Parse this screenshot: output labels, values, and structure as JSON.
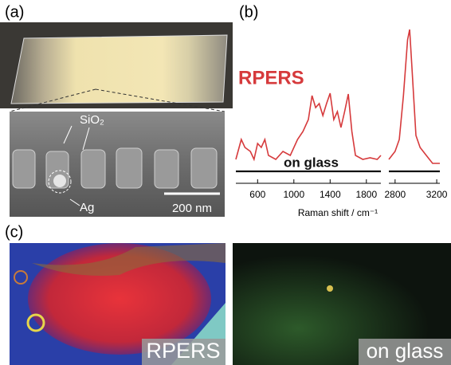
{
  "panels": {
    "a": {
      "label": "(a)",
      "annotations": [
        "SiO₂",
        "Ag"
      ],
      "scale_bar": "200 nm"
    },
    "b": {
      "label": "(b)"
    },
    "c": {
      "label": "(c)",
      "image_labels": [
        "RPERS",
        "on glass"
      ]
    }
  },
  "chart_data": {
    "type": "line",
    "x_label": "Raman shift / cm⁻¹",
    "x_segments": [
      [
        360,
        1960
      ],
      [
        2740,
        3230
      ]
    ],
    "ylim": [
      0,
      100
    ],
    "xticks": [
      600,
      1000,
      1400,
      1800,
      2800,
      3200
    ],
    "x": [
      360,
      420,
      460,
      520,
      560,
      600,
      640,
      680,
      720,
      800,
      880,
      960,
      1040,
      1100,
      1160,
      1200,
      1240,
      1280,
      1320,
      1360,
      1400,
      1440,
      1480,
      1520,
      1560,
      1600,
      1640,
      1680,
      1760,
      1840,
      1920,
      1960,
      null,
      2740,
      2800,
      2840,
      2880,
      2920,
      2940,
      2960,
      3000,
      3040,
      3100,
      3160,
      3230
    ],
    "series": [
      {
        "name": "RPERS",
        "color": "#d63a3c",
        "values": [
          12.5,
          25,
          20,
          17.5,
          12.5,
          22.5,
          20,
          25,
          15,
          12.5,
          17.5,
          15,
          25,
          30,
          37.5,
          52.5,
          45,
          47.5,
          40,
          47.5,
          54,
          37.5,
          42.5,
          32.5,
          42.5,
          53.5,
          30,
          15,
          12.5,
          13.5,
          12.5,
          15,
          null,
          12.5,
          17.5,
          25,
          52.5,
          87.5,
          94,
          72.5,
          27.5,
          20,
          15,
          10,
          10
        ]
      },
      {
        "name": "on glass",
        "color": "#111111",
        "values": [
          5,
          5,
          5,
          5,
          5,
          5,
          5,
          5,
          5,
          5,
          5,
          5,
          5,
          5,
          5,
          5,
          5,
          5,
          5,
          5,
          5,
          5,
          5,
          5,
          5,
          5,
          5,
          5,
          5,
          5,
          5,
          5,
          null,
          5,
          5,
          5,
          5,
          5,
          5,
          5,
          5,
          5,
          5,
          5,
          5
        ]
      }
    ]
  }
}
